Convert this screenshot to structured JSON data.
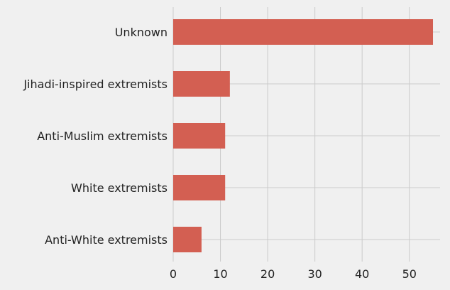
{
  "chart_data": {
    "type": "bar",
    "orientation": "horizontal",
    "categories": [
      "Unknown",
      "Jihadi-inspired extremists",
      "Anti-Muslim extremists",
      "White extremists",
      "Anti-White extremists"
    ],
    "values": [
      55,
      12,
      11,
      11,
      6
    ],
    "xlim": [
      0,
      56.5
    ],
    "xticks": [
      "0",
      "10",
      "20",
      "30",
      "40",
      "50"
    ],
    "grid": true,
    "colors": {
      "bar": "#d35f52",
      "background": "#f0f0f0",
      "grid": "#cbcbcb",
      "text": "#222222"
    }
  }
}
